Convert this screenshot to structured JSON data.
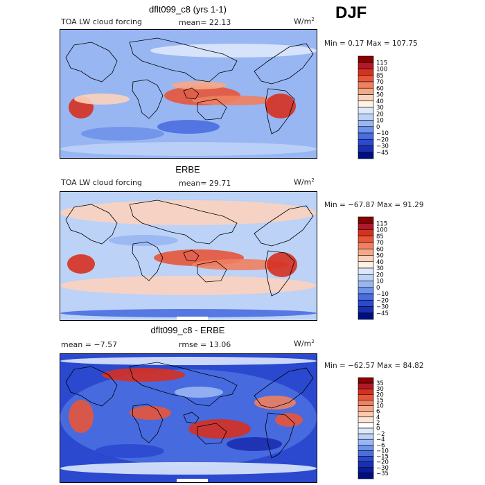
{
  "season": "DJF",
  "units_text": "W/m",
  "units_exp": "2",
  "panels": [
    {
      "title": "dflt099_c8 (yrs 1-1)",
      "left_label": "TOA LW cloud forcing",
      "mid_label": "mean=  22.13",
      "minmax": "Min =    0.17 Max = 107.75",
      "colorbar_levels": [
        "115",
        "100",
        "85",
        "70",
        "60",
        "50",
        "40",
        "30",
        "20",
        "10",
        "0",
        "−10",
        "−20",
        "−30",
        "−45"
      ],
      "colorbar_colors": [
        "#8b0000",
        "#b2182b",
        "#d6301f",
        "#e7553a",
        "#f08060",
        "#f6a886",
        "#fbd2bd",
        "#fff1e6",
        "#dde8fb",
        "#bcd2f7",
        "#98b6f2",
        "#6f92ea",
        "#4a6ee0",
        "#2a49cf",
        "#1a2fb0",
        "#000f80"
      ]
    },
    {
      "title": "ERBE",
      "left_label": "TOA LW cloud forcing",
      "mid_label": "mean=  29.71",
      "minmax": "Min = −67.87 Max =  91.29",
      "colorbar_levels": [
        "115",
        "100",
        "85",
        "70",
        "60",
        "50",
        "40",
        "30",
        "20",
        "10",
        "0",
        "−10",
        "−20",
        "−30",
        "−45"
      ],
      "colorbar_colors": [
        "#8b0000",
        "#b2182b",
        "#d6301f",
        "#e7553a",
        "#f08060",
        "#f6a886",
        "#fbd2bd",
        "#fff1e6",
        "#dde8fb",
        "#bcd2f7",
        "#98b6f2",
        "#6f92ea",
        "#4a6ee0",
        "#2a49cf",
        "#1a2fb0",
        "#000f80"
      ]
    },
    {
      "title": "dflt099_c8 - ERBE",
      "left_label": "mean =   −7.57",
      "mid_label": "rmse =  13.06",
      "minmax": "Min = −62.57 Max =  84.82",
      "colorbar_levels": [
        "35",
        "30",
        "20",
        "15",
        "10",
        "6",
        "4",
        "2",
        "0",
        "−2",
        "−4",
        "−6",
        "−10",
        "−15",
        "−20",
        "−30",
        "−35"
      ],
      "colorbar_colors": [
        "#8b0000",
        "#b2182b",
        "#d6301f",
        "#e7553a",
        "#f08060",
        "#f6a886",
        "#fbc8b0",
        "#fde3d6",
        "#ffffff",
        "#dde8fb",
        "#bcd2f7",
        "#98b6f2",
        "#6f92ea",
        "#4a6ee0",
        "#2a49cf",
        "#1a2fb0",
        "#0a1c98",
        "#000f80"
      ]
    }
  ],
  "chart_data": [
    {
      "type": "heatmap",
      "title": "dflt099_c8 (yrs 1-1)",
      "variable": "TOA LW cloud forcing",
      "mean": 22.13,
      "min": 0.17,
      "max": 107.75,
      "units": "W/m2"
    },
    {
      "type": "heatmap",
      "title": "ERBE",
      "variable": "TOA LW cloud forcing",
      "mean": 29.71,
      "min": -67.87,
      "max": 91.29,
      "units": "W/m2"
    },
    {
      "type": "heatmap",
      "title": "dflt099_c8 - ERBE",
      "mean": -7.57,
      "rmse": 13.06,
      "min": -62.57,
      "max": 84.82,
      "units": "W/m2"
    }
  ]
}
